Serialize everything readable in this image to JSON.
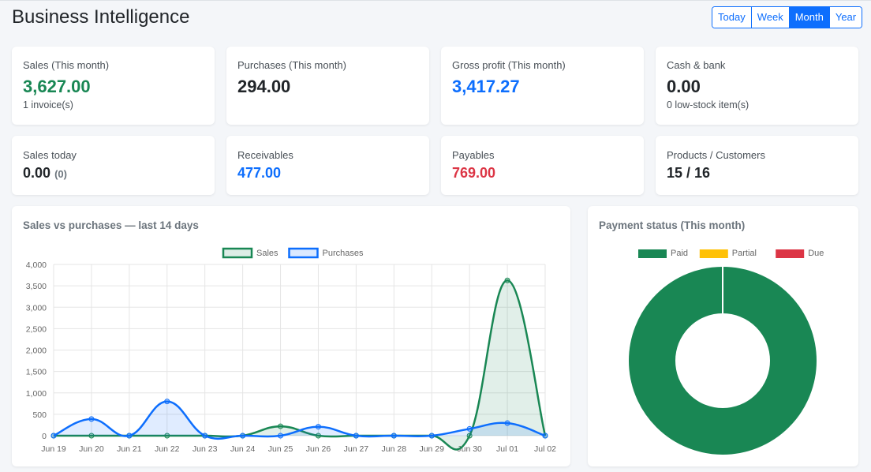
{
  "page": {
    "title": "Business Intelligence"
  },
  "range": {
    "options": [
      {
        "label": "Today",
        "active": false
      },
      {
        "label": "Week",
        "active": false
      },
      {
        "label": "Month",
        "active": true
      },
      {
        "label": "Year",
        "active": false
      }
    ]
  },
  "kpis_top": [
    {
      "label": "Sales (This month)",
      "value": "3,627.00",
      "sub": "1 invoice(s)"
    },
    {
      "label": "Purchases (This month)",
      "value": "294.00",
      "sub": ""
    },
    {
      "label": "Gross profit (This month)",
      "value": "3,417.27",
      "sub": ""
    },
    {
      "label": "Cash & bank",
      "value": "0.00",
      "sub": "0 low-stock item(s)"
    }
  ],
  "kpis_bottom": [
    {
      "label": "Sales today",
      "value": "0.00",
      "count": "(0)"
    },
    {
      "label": "Receivables",
      "value": "477.00"
    },
    {
      "label": "Payables",
      "value": "769.00"
    },
    {
      "label": "Products / Customers",
      "value": "15 / 16"
    }
  ],
  "colors": {
    "sales": "#198754",
    "purchases": "#0d6efd",
    "paid": "#198754",
    "partial": "#ffc107",
    "due": "#dc3545"
  },
  "chart_data": [
    {
      "type": "area",
      "title": "Sales vs purchases — last 14 days",
      "categories": [
        "Jun 19",
        "Jun 20",
        "Jun 21",
        "Jun 22",
        "Jun 23",
        "Jun 24",
        "Jun 25",
        "Jun 26",
        "Jun 27",
        "Jun 28",
        "Jun 29",
        "Jun 30",
        "Jul 01",
        "Jul 02"
      ],
      "series": [
        {
          "name": "Sales",
          "color": "#198754",
          "values": [
            0,
            0,
            0,
            0,
            0,
            0,
            220,
            0,
            0,
            0,
            0,
            0,
            3627,
            0
          ]
        },
        {
          "name": "Purchases",
          "color": "#0d6efd",
          "values": [
            0,
            390,
            0,
            800,
            0,
            0,
            0,
            210,
            0,
            0,
            0,
            160,
            294,
            0
          ]
        }
      ],
      "yticks": [
        "0",
        "500",
        "1,000",
        "1,500",
        "2,000",
        "2,500",
        "3,000",
        "3,500",
        "4,000"
      ],
      "ylim": [
        0,
        4000
      ],
      "grid": true,
      "legend": "top"
    },
    {
      "type": "pie",
      "title": "Payment status (This month)",
      "labels": [
        "Paid",
        "Partial",
        "Due"
      ],
      "values": [
        1,
        0,
        0
      ],
      "colors": [
        "#198754",
        "#ffc107",
        "#dc3545"
      ],
      "legend": "top"
    }
  ]
}
